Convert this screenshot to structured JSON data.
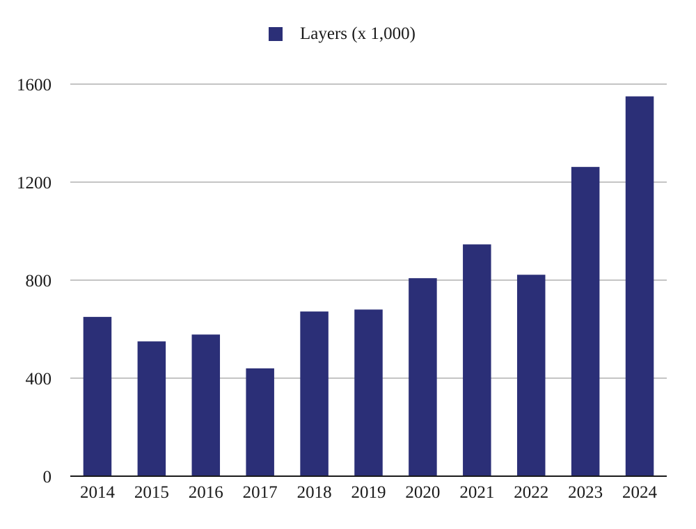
{
  "chart_data": {
    "type": "bar",
    "title": "",
    "xlabel": "",
    "ylabel": "",
    "categories": [
      "2014",
      "2015",
      "2016",
      "2017",
      "2018",
      "2019",
      "2020",
      "2021",
      "2022",
      "2023",
      "2024"
    ],
    "series": [
      {
        "name": "Layers (x 1,000)",
        "values": [
          650,
          550,
          578,
          440,
          672,
          680,
          808,
          946,
          822,
          1262,
          1550
        ],
        "color": "#2b2f77"
      }
    ],
    "ylim": [
      0,
      1600
    ],
    "yticks": [
      0,
      400,
      800,
      1200,
      1600
    ],
    "grid": true,
    "grid_color": "#c4c4c4",
    "legend_position": "top-center"
  }
}
